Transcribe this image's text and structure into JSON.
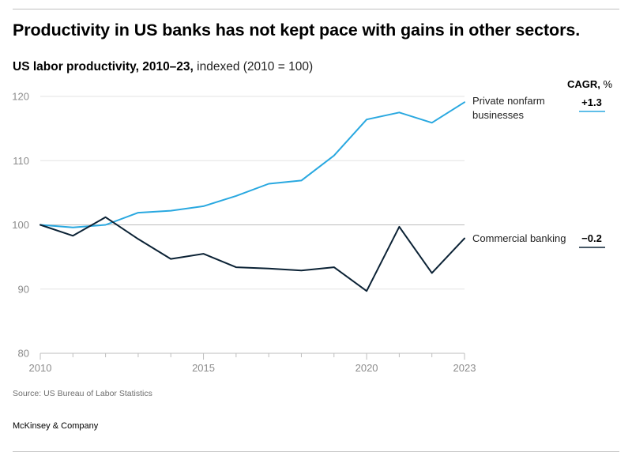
{
  "header": {
    "title": "Productivity in US banks has not kept pace with gains in other sectors.",
    "subtitle_bold": "US labor productivity, 2010–23,",
    "subtitle_regular": "indexed (2010 = 100)",
    "cagr_head_bold": "CAGR,",
    "cagr_head_unit": "%"
  },
  "footer": {
    "source": "Source: US Bureau of Labor Statistics",
    "brand": "McKinsey & Company"
  },
  "colors": {
    "private": "#29a8e0",
    "banking": "#0b2235",
    "grid": "#e3e3e3",
    "baseline": "#bdbdbd"
  },
  "chart_data": {
    "type": "line",
    "title": "US labor productivity, 2010–23, indexed (2010 = 100)",
    "xlabel": "",
    "ylabel": "",
    "x": [
      2010,
      2011,
      2012,
      2013,
      2014,
      2015,
      2016,
      2017,
      2018,
      2019,
      2020,
      2021,
      2022,
      2023
    ],
    "xlim": [
      2010,
      2023
    ],
    "ylim": [
      80,
      120
    ],
    "yticks": [
      80,
      90,
      100,
      110,
      120
    ],
    "xticks": [
      2010,
      2015,
      2020,
      2023
    ],
    "series": [
      {
        "name": "Private nonfarm businesses",
        "label_lines": [
          "Private nonfarm",
          "businesses"
        ],
        "cagr": "+1.3",
        "values": [
          100.0,
          99.6,
          100.0,
          101.9,
          102.2,
          102.9,
          104.5,
          106.4,
          106.9,
          110.8,
          116.4,
          117.5,
          115.9,
          119.1
        ]
      },
      {
        "name": "Commercial banking",
        "label_lines": [
          "Commercial banking"
        ],
        "cagr": "−0.2",
        "values": [
          100.0,
          98.3,
          101.2,
          97.8,
          94.7,
          95.5,
          93.4,
          93.2,
          92.9,
          93.4,
          89.7,
          99.7,
          92.5,
          97.9
        ]
      }
    ]
  }
}
